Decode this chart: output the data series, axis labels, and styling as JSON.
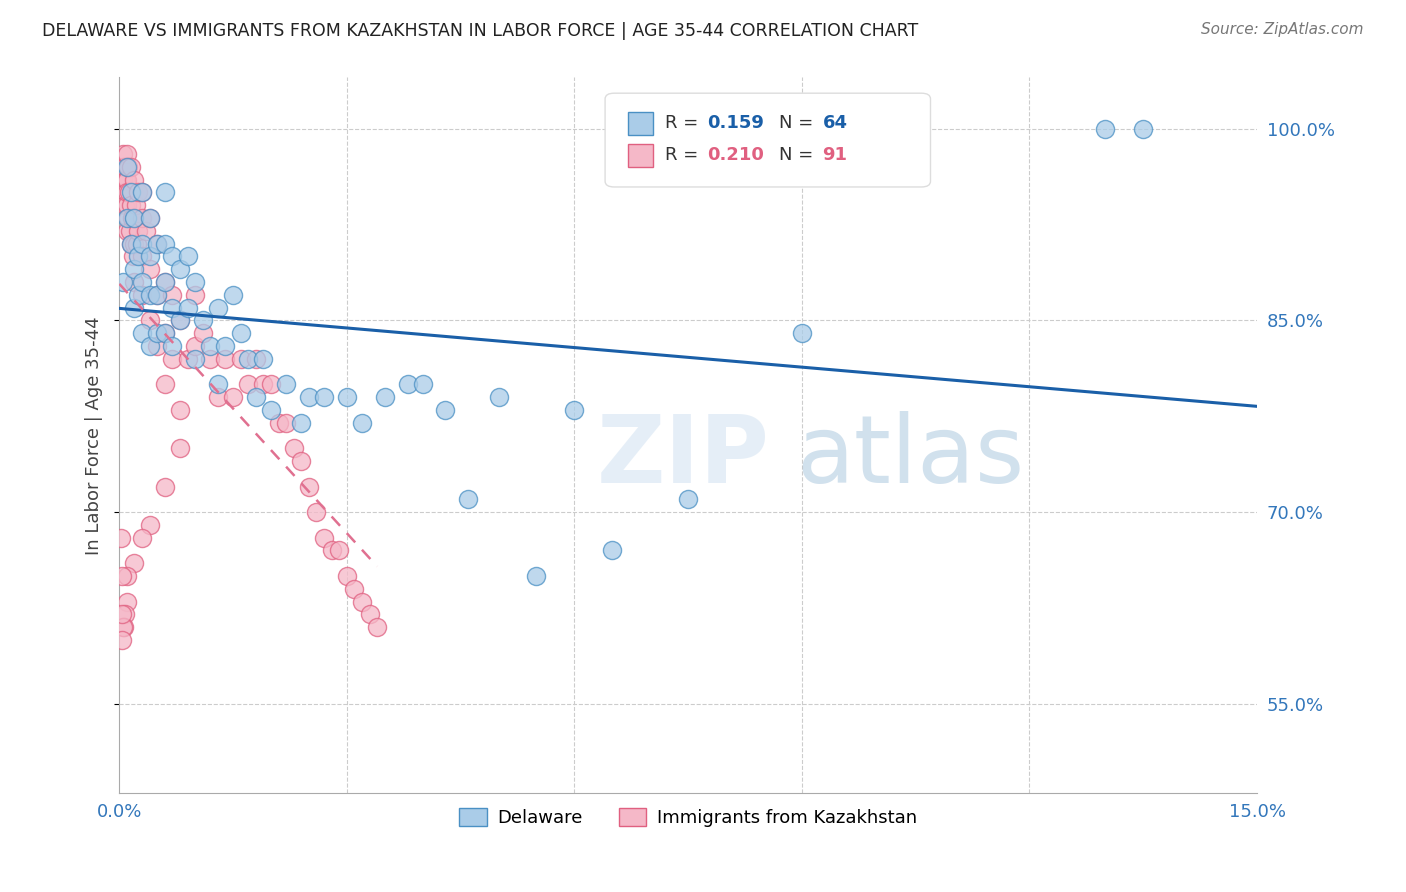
{
  "title": "DELAWARE VS IMMIGRANTS FROM KAZAKHSTAN IN LABOR FORCE | AGE 35-44 CORRELATION CHART",
  "source": "Source: ZipAtlas.com",
  "ylabel": "In Labor Force | Age 35-44",
  "xlim": [
    0.0,
    0.15
  ],
  "ylim": [
    0.48,
    1.04
  ],
  "xtick_positions": [
    0.0,
    0.03,
    0.06,
    0.09,
    0.12,
    0.15
  ],
  "xticklabels": [
    "0.0%",
    "",
    "",
    "",
    "",
    "15.0%"
  ],
  "ytick_positions": [
    0.55,
    0.7,
    0.85,
    1.0
  ],
  "yticklabels": [
    "55.0%",
    "70.0%",
    "85.0%",
    "100.0%"
  ],
  "delaware_color": "#aacce8",
  "delaware_edge": "#4a90c4",
  "kazakhstan_color": "#f5b8c8",
  "kazakhstan_edge": "#e06080",
  "line_delaware_color": "#1a5fa8",
  "line_kazakhstan_color": "#e07090",
  "background_color": "#ffffff",
  "watermark_zip": "ZIP",
  "watermark_atlas": "atlas",
  "delaware_x": [
    0.0005,
    0.001,
    0.001,
    0.0015,
    0.0015,
    0.002,
    0.002,
    0.002,
    0.0025,
    0.0025,
    0.003,
    0.003,
    0.003,
    0.003,
    0.004,
    0.004,
    0.004,
    0.004,
    0.005,
    0.005,
    0.005,
    0.006,
    0.006,
    0.006,
    0.006,
    0.007,
    0.007,
    0.007,
    0.008,
    0.008,
    0.009,
    0.009,
    0.01,
    0.01,
    0.011,
    0.012,
    0.013,
    0.013,
    0.014,
    0.015,
    0.016,
    0.017,
    0.018,
    0.019,
    0.02,
    0.022,
    0.024,
    0.025,
    0.027,
    0.03,
    0.032,
    0.035,
    0.038,
    0.04,
    0.043,
    0.046,
    0.05,
    0.055,
    0.06,
    0.065,
    0.075,
    0.09,
    0.13,
    0.135
  ],
  "delaware_y": [
    0.88,
    0.93,
    0.97,
    0.91,
    0.95,
    0.89,
    0.86,
    0.93,
    0.9,
    0.87,
    0.95,
    0.91,
    0.88,
    0.84,
    0.93,
    0.9,
    0.87,
    0.83,
    0.91,
    0.87,
    0.84,
    0.95,
    0.91,
    0.88,
    0.84,
    0.9,
    0.86,
    0.83,
    0.89,
    0.85,
    0.9,
    0.86,
    0.88,
    0.82,
    0.85,
    0.83,
    0.86,
    0.8,
    0.83,
    0.87,
    0.84,
    0.82,
    0.79,
    0.82,
    0.78,
    0.8,
    0.77,
    0.79,
    0.79,
    0.79,
    0.77,
    0.79,
    0.8,
    0.8,
    0.78,
    0.71,
    0.79,
    0.65,
    0.78,
    0.67,
    0.71,
    0.84,
    1.0,
    1.0
  ],
  "kazakhstan_x": [
    0.0003,
    0.0004,
    0.0005,
    0.0005,
    0.0006,
    0.0007,
    0.0008,
    0.0008,
    0.0009,
    0.001,
    0.001,
    0.001,
    0.001,
    0.001,
    0.0012,
    0.0012,
    0.0013,
    0.0014,
    0.0015,
    0.0015,
    0.0016,
    0.0017,
    0.0018,
    0.002,
    0.002,
    0.002,
    0.002,
    0.0022,
    0.0023,
    0.0025,
    0.0025,
    0.003,
    0.003,
    0.003,
    0.003,
    0.0035,
    0.004,
    0.004,
    0.004,
    0.005,
    0.005,
    0.005,
    0.006,
    0.006,
    0.006,
    0.007,
    0.007,
    0.008,
    0.008,
    0.009,
    0.01,
    0.01,
    0.011,
    0.012,
    0.013,
    0.014,
    0.015,
    0.016,
    0.017,
    0.018,
    0.019,
    0.02,
    0.021,
    0.022,
    0.023,
    0.024,
    0.025,
    0.026,
    0.027,
    0.028,
    0.029,
    0.03,
    0.031,
    0.032,
    0.033,
    0.034,
    0.008,
    0.006,
    0.004,
    0.003,
    0.002,
    0.001,
    0.001,
    0.0008,
    0.0006,
    0.0005,
    0.0004,
    0.0003,
    0.0003,
    0.0002
  ],
  "kazakhstan_y": [
    0.97,
    0.96,
    0.98,
    0.96,
    0.97,
    0.95,
    0.97,
    0.94,
    0.96,
    0.98,
    0.96,
    0.94,
    0.92,
    0.95,
    0.97,
    0.93,
    0.95,
    0.92,
    0.97,
    0.94,
    0.91,
    0.93,
    0.9,
    0.96,
    0.93,
    0.91,
    0.88,
    0.94,
    0.91,
    0.95,
    0.92,
    0.95,
    0.93,
    0.9,
    0.87,
    0.92,
    0.93,
    0.89,
    0.85,
    0.91,
    0.87,
    0.83,
    0.88,
    0.84,
    0.8,
    0.87,
    0.82,
    0.85,
    0.78,
    0.82,
    0.87,
    0.83,
    0.84,
    0.82,
    0.79,
    0.82,
    0.79,
    0.82,
    0.8,
    0.82,
    0.8,
    0.8,
    0.77,
    0.77,
    0.75,
    0.74,
    0.72,
    0.7,
    0.68,
    0.67,
    0.67,
    0.65,
    0.64,
    0.63,
    0.62,
    0.61,
    0.75,
    0.72,
    0.69,
    0.68,
    0.66,
    0.65,
    0.63,
    0.62,
    0.61,
    0.61,
    0.6,
    0.62,
    0.65,
    0.68
  ]
}
